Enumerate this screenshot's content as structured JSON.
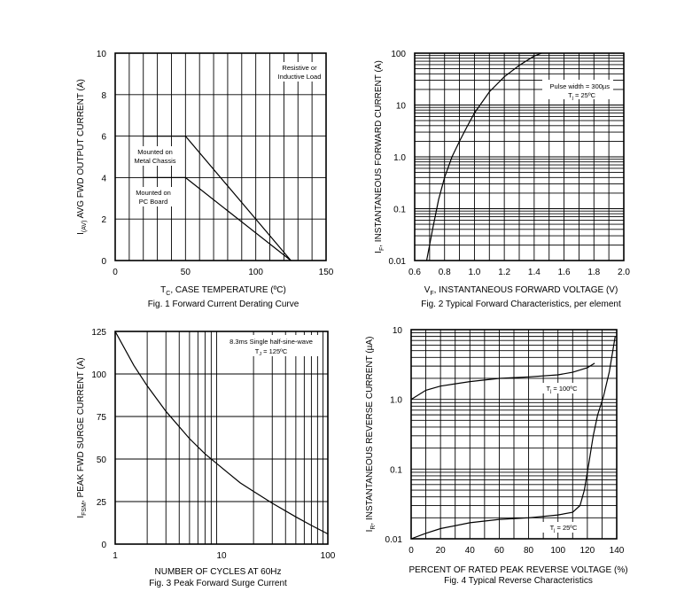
{
  "chart_data": [
    {
      "type": "line",
      "title": "Fig. 1  Forward Current Derating Curve",
      "xlabel_main": "T",
      "xlabel_sub": "C",
      "xlabel_rest": ", CASE TEMPERATURE (ºC)",
      "ylabel_main": "I",
      "ylabel_sub": "(AV)",
      "ylabel_rest": " AVG FWD OUTPUT CURRENT (A)",
      "xlim": [
        0,
        150
      ],
      "ylim": [
        0,
        10
      ],
      "x_ticks": [
        "0",
        "50",
        "100",
        "150"
      ],
      "y_ticks": [
        "0",
        "2",
        "4",
        "6",
        "8",
        "10"
      ],
      "series": [
        {
          "name": "Mounted on Metal Chassis",
          "x": [
            20,
            50,
            125
          ],
          "y": [
            6,
            6,
            0
          ]
        },
        {
          "name": "Mounted on PC Board",
          "x": [
            20,
            50,
            125
          ],
          "y": [
            4,
            4,
            0
          ]
        }
      ],
      "annotations": [
        {
          "line1": "Resistive or",
          "line2": "Inductive Load"
        },
        {
          "line1": "Mounted on",
          "line2": "Metal Chassis"
        },
        {
          "line1": "Mounted on",
          "line2": "PC Board"
        }
      ]
    },
    {
      "type": "line",
      "title": "Fig. 2  Typical Forward Characteristics, per element",
      "xlabel_main": "V",
      "xlabel_sub": "F",
      "xlabel_rest": ", INSTANTANEOUS FORWARD VOLTAGE (V)",
      "ylabel_main": "I",
      "ylabel_sub": "F",
      "ylabel_rest": ", INSTANTANEOUS FORWARD CURRENT (A)",
      "xlim": [
        0.6,
        2.0
      ],
      "ylim": [
        0.01,
        100
      ],
      "yscale": "log",
      "x_ticks": [
        "0.6",
        "0.8",
        "1.0",
        "1.2",
        "1.4",
        "1.6",
        "1.8",
        "2.0"
      ],
      "y_ticks": [
        "0.01",
        "0.1",
        "1.0",
        "10",
        "100"
      ],
      "series": [
        {
          "name": "Tj = 25ºC",
          "x": [
            0.68,
            0.72,
            0.76,
            0.8,
            0.85,
            0.9,
            0.95,
            1.0,
            1.1,
            1.2,
            1.3,
            1.4,
            1.45
          ],
          "y": [
            0.01,
            0.04,
            0.15,
            0.4,
            1.0,
            2.0,
            3.8,
            7.0,
            18,
            35,
            58,
            88,
            100
          ]
        }
      ],
      "annotations": [
        {
          "line1": "Pulse width = 300µs",
          "line2": "T",
          "sub": "j",
          "rest": " = 25ºC"
        }
      ]
    },
    {
      "type": "line",
      "title": "Fig. 3  Peak Forward Surge Current",
      "xlabel_main": "NUMBER OF CYCLES AT 60Hz",
      "xlabel_sub": "",
      "xlabel_rest": "",
      "ylabel_main": "I",
      "ylabel_sub": "FSM",
      "ylabel_rest": ", PEAK FWD SURGE CURRENT (A)",
      "xlim": [
        1,
        100
      ],
      "ylim": [
        0,
        125
      ],
      "xscale": "log",
      "x_ticks": [
        "1",
        "10",
        "100"
      ],
      "y_ticks": [
        "0",
        "25",
        "50",
        "75",
        "100",
        "125"
      ],
      "series": [
        {
          "name": "8.3ms Single half-sine-wave",
          "x": [
            1,
            1.5,
            2,
            3,
            5,
            7,
            10,
            15,
            20,
            30,
            50,
            70,
            100
          ],
          "y": [
            125,
            105,
            93,
            78,
            62,
            53,
            45,
            36,
            31,
            24,
            16,
            11,
            6
          ]
        }
      ],
      "annotations": [
        {
          "line1": "8.3ms Single half-sine-wave",
          "line2": "T",
          "sub": "J",
          "rest": " = 125ºC"
        }
      ]
    },
    {
      "type": "line",
      "title": "Fig. 4  Typical Reverse Characteristics",
      "xlabel_main": "PERCENT OF RATED PEAK REVERSE VOLTAGE (%)",
      "xlabel_sub": "",
      "xlabel_rest": "",
      "ylabel_main": "I",
      "ylabel_sub": "R",
      "ylabel_rest": ", INSTANTANEOUS REVERSE CURRENT (µA)",
      "xlim": [
        0,
        140
      ],
      "ylim": [
        0.01,
        10
      ],
      "yscale": "log",
      "x_ticks": [
        "0",
        "20",
        "40",
        "60",
        "80",
        "100",
        "120",
        "140"
      ],
      "y_ticks": [
        "0.01",
        "0.1",
        "1.0",
        "10"
      ],
      "series": [
        {
          "name": "Tj = 100ºC",
          "x": [
            0,
            10,
            20,
            40,
            60,
            80,
            100,
            110,
            120,
            125
          ],
          "y": [
            1.0,
            1.35,
            1.55,
            1.8,
            2.0,
            2.1,
            2.25,
            2.45,
            2.85,
            3.3
          ]
        },
        {
          "name": "Tj = 25ºC",
          "x": [
            0,
            10,
            20,
            40,
            60,
            80,
            100,
            110,
            115,
            118,
            121,
            124,
            127,
            131,
            135,
            139
          ],
          "y": [
            0.01,
            0.012,
            0.014,
            0.017,
            0.019,
            0.02,
            0.022,
            0.024,
            0.03,
            0.05,
            0.12,
            0.3,
            0.6,
            1.1,
            2.5,
            8
          ]
        }
      ],
      "annotations": [
        {
          "line1": "",
          "line2": "T",
          "sub": "j",
          "rest": " = 100ºC"
        },
        {
          "line1": "",
          "line2": "T",
          "sub": "j",
          "rest": " = 25ºC"
        }
      ]
    }
  ]
}
